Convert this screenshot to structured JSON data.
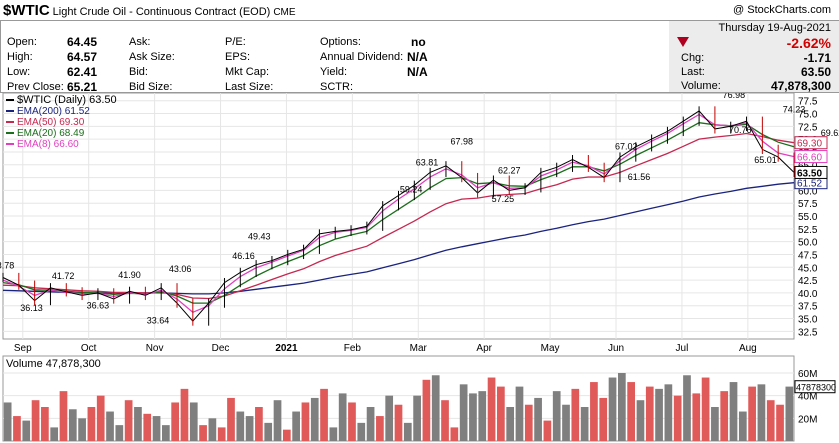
{
  "header": {
    "symbol": "$WTIC",
    "description": "Light Crude Oil - Continuous Contract (EOD)",
    "exchange": "CME",
    "copyright": "@ StockCharts.com"
  },
  "quote": {
    "open_label": "Open:",
    "open": "64.45",
    "high_label": "High:",
    "high": "64.57",
    "low_label": "Low:",
    "low": "62.41",
    "prev_close_label": "Prev Close:",
    "prev_close": "65.21",
    "ask_label": "Ask:",
    "ask_size_label": "Ask Size:",
    "bid_label": "Bid:",
    "bid_size_label": "Bid Size:",
    "pe_label": "P/E:",
    "eps_label": "EPS:",
    "mkt_cap_label": "Mkt Cap:",
    "last_size_label": "Last Size:",
    "options_label": "Options:",
    "options": "no",
    "annual_dividend_label": "Annual Dividend:",
    "annual_dividend": "N/A",
    "yield_label": "Yield:",
    "yield": "N/A",
    "sctr_label": "SCTR:",
    "date": "Thursday  19-Aug-2021",
    "change_pct": "-2.62%",
    "chg_label": "Chg:",
    "chg": "-1.71",
    "last_label": "Last:",
    "last": "63.50",
    "volume_label": "Volume:",
    "volume": "47,878,300"
  },
  "colors": {
    "ema200": "#1a237e",
    "ema50": "#c62850",
    "ema20": "#1b6e1b",
    "ema8": "#e040c0",
    "vol_up": "#7f7f7f",
    "vol_down": "#e05a5a",
    "price": "#000000",
    "negative": "#d00000"
  },
  "chart_data": [
    {
      "type": "line",
      "legend": [
        {
          "key": "price",
          "label": "$WTIC (Daily) 63.50"
        },
        {
          "key": "ema200",
          "label": "EMA(200) 61.52"
        },
        {
          "key": "ema50",
          "label": "EMA(50) 69.30"
        },
        {
          "key": "ema20",
          "label": "EMA(20) 68.49"
        },
        {
          "key": "ema8",
          "label": "EMA(8) 66.60"
        }
      ],
      "x_ticks": [
        "Sep",
        "Oct",
        "Nov",
        "Dec",
        "2021",
        "Feb",
        "Mar",
        "Apr",
        "May",
        "Jun",
        "Jul",
        "Aug"
      ],
      "y_ticks": [
        "77.5",
        "75.0",
        "72.5",
        "70.0",
        "67.5",
        "65.0",
        "62.5",
        "60.0",
        "57.5",
        "55.0",
        "52.5",
        "50.0",
        "47.5",
        "45.0",
        "42.5",
        "40.0",
        "37.5",
        "35.0",
        "32.5"
      ],
      "ylim": [
        31.0,
        79.0
      ],
      "x": [
        0,
        5,
        10,
        15,
        20,
        25,
        30,
        35,
        40,
        45,
        50,
        55,
        60,
        65,
        70,
        75,
        80,
        85,
        90,
        95,
        100,
        105,
        110,
        115,
        120,
        125,
        130,
        135,
        140,
        145,
        150,
        155,
        160,
        165,
        170,
        175,
        180,
        185,
        190,
        195,
        200,
        205,
        210,
        215,
        220,
        225,
        230,
        235,
        240,
        245,
        250
      ],
      "series": [
        {
          "key": "price",
          "values": [
            43.0,
            41.5,
            38.5,
            41.0,
            40.2,
            39.5,
            40.0,
            38.8,
            40.3,
            39.5,
            41.0,
            38.0,
            34.5,
            38.0,
            42.0,
            44.0,
            45.5,
            46.3,
            47.5,
            48.5,
            51.5,
            52.0,
            52.3,
            53.0,
            57.0,
            59.0,
            61.0,
            63.5,
            64.8,
            62.5,
            59.5,
            62.0,
            60.0,
            60.5,
            63.5,
            64.5,
            66.0,
            64.5,
            62.5,
            66.5,
            68.5,
            70.0,
            71.5,
            73.5,
            75.5,
            72.0,
            72.5,
            73.5,
            68.0,
            66.5,
            63.5
          ]
        },
        {
          "key": "ema8",
          "values": [
            42.5,
            41.3,
            39.5,
            40.5,
            40.1,
            39.8,
            39.9,
            39.3,
            40.0,
            39.7,
            40.5,
            38.8,
            36.2,
            37.5,
            40.8,
            43.2,
            44.9,
            46.0,
            47.2,
            48.3,
            50.8,
            51.8,
            52.2,
            52.8,
            56.0,
            58.3,
            60.3,
            62.6,
            64.2,
            63.0,
            60.5,
            61.5,
            60.4,
            60.5,
            62.8,
            64.0,
            65.5,
            64.8,
            63.2,
            65.8,
            68.0,
            69.6,
            71.1,
            73.0,
            74.8,
            72.8,
            72.6,
            73.2,
            69.6,
            67.3,
            66.6
          ]
        },
        {
          "key": "ema20",
          "values": [
            42.0,
            41.6,
            40.6,
            40.5,
            40.3,
            40.1,
            40.0,
            39.7,
            39.9,
            39.8,
            40.2,
            39.4,
            38.0,
            38.0,
            39.5,
            41.5,
            43.3,
            44.8,
            46.1,
            47.3,
            49.2,
            50.5,
            51.3,
            52.0,
            54.3,
            56.3,
            58.3,
            60.5,
            62.3,
            62.5,
            61.3,
            61.5,
            60.9,
            60.8,
            62.1,
            63.2,
            64.6,
            64.6,
            63.8,
            65.1,
            66.8,
            68.3,
            69.8,
            71.5,
            73.2,
            72.8,
            72.6,
            72.9,
            70.9,
            69.4,
            68.5
          ]
        },
        {
          "key": "ema50",
          "values": [
            41.5,
            41.4,
            41.0,
            40.8,
            40.6,
            40.4,
            40.3,
            40.1,
            40.1,
            40.0,
            40.1,
            39.7,
            39.0,
            38.9,
            39.4,
            40.4,
            41.5,
            42.6,
            43.7,
            44.7,
            46.1,
            47.3,
            48.2,
            49.1,
            50.8,
            52.4,
            54.0,
            55.8,
            57.4,
            58.3,
            58.5,
            59.0,
            59.2,
            59.4,
            60.3,
            61.1,
            62.2,
            62.6,
            62.6,
            63.5,
            64.8,
            66.0,
            67.2,
            68.6,
            70.0,
            70.4,
            70.7,
            71.1,
            70.5,
            69.8,
            69.3
          ]
        },
        {
          "key": "ema200",
          "values": [
            40.5,
            40.4,
            40.3,
            40.2,
            40.1,
            40.0,
            40.0,
            40.0,
            40.0,
            40.0,
            40.0,
            39.9,
            39.8,
            39.8,
            40.0,
            40.3,
            40.7,
            41.1,
            41.5,
            41.9,
            42.5,
            43.1,
            43.6,
            44.1,
            44.9,
            45.7,
            46.5,
            47.4,
            48.3,
            49.0,
            49.6,
            50.2,
            50.8,
            51.3,
            52.0,
            52.6,
            53.3,
            53.9,
            54.4,
            55.1,
            55.8,
            56.5,
            57.2,
            57.9,
            58.7,
            59.3,
            59.8,
            60.4,
            60.8,
            61.2,
            61.5
          ]
        }
      ],
      "annotations": [
        {
          "label": "43.78",
          "x": 0,
          "y": 44.4
        },
        {
          "label": "36.13",
          "x": 9,
          "y": 36.1
        },
        {
          "label": "41.72",
          "x": 19,
          "y": 42.3
        },
        {
          "label": "36.63",
          "x": 30,
          "y": 36.6
        },
        {
          "label": "41.90",
          "x": 40,
          "y": 42.5
        },
        {
          "label": "33.64",
          "x": 49,
          "y": 33.6
        },
        {
          "label": "43.06",
          "x": 56,
          "y": 43.7
        },
        {
          "label": "46.16",
          "x": 76,
          "y": 46.2
        },
        {
          "label": "49.43",
          "x": 81,
          "y": 50.0
        },
        {
          "label": "63.81",
          "x": 134,
          "y": 64.5
        },
        {
          "label": "59.24",
          "x": 129,
          "y": 59.2
        },
        {
          "label": "67.98",
          "x": 145,
          "y": 68.6
        },
        {
          "label": "62.27",
          "x": 160,
          "y": 62.9
        },
        {
          "label": "57.25",
          "x": 158,
          "y": 57.3
        },
        {
          "label": "67.02",
          "x": 197,
          "y": 67.6
        },
        {
          "label": "61.56",
          "x": 201,
          "y": 61.6
        },
        {
          "label": "76.98",
          "x": 231,
          "y": 77.6
        },
        {
          "label": "70.76",
          "x": 233,
          "y": 70.8
        },
        {
          "label": "74.23",
          "x": 250,
          "y": 74.8
        },
        {
          "label": "65.01",
          "x": 241,
          "y": 65.0
        },
        {
          "label": "69.62",
          "x": 262,
          "y": 70.2
        },
        {
          "label": "65.15",
          "x": 256,
          "y": 65.2
        }
      ],
      "right_tags": [
        {
          "key": "ema50",
          "label": "69.30"
        },
        {
          "key": "ema8",
          "label": "66.60"
        },
        {
          "key": "ema200",
          "label": "61.52"
        },
        {
          "key": "price",
          "label": "63.50"
        }
      ]
    },
    {
      "type": "bar",
      "legend_label": "Volume 47,878,300",
      "y_ticks": [
        "60M",
        "40M",
        "20M"
      ],
      "ylim": [
        0,
        75
      ],
      "current_tag": "47878300",
      "values": [
        34,
        22,
        18,
        36,
        30,
        12,
        44,
        28,
        20,
        30,
        40,
        26,
        14,
        36,
        30,
        24,
        22,
        14,
        34,
        46,
        34,
        14,
        20,
        12,
        38,
        26,
        22,
        30,
        16,
        36,
        10,
        26,
        34,
        38,
        46,
        12,
        42,
        34,
        16,
        30,
        22,
        40,
        32,
        16,
        40,
        54,
        58,
        36,
        12,
        50,
        42,
        44,
        56,
        48,
        30,
        48,
        32,
        38,
        18,
        44,
        32,
        46,
        30,
        52,
        38,
        56,
        60,
        52,
        36,
        48,
        46,
        50,
        40,
        58,
        42,
        56,
        30,
        44,
        52,
        26,
        48,
        50,
        36,
        32,
        48
      ],
      "up": [
        1,
        0,
        1,
        0,
        0,
        1,
        0,
        1,
        1,
        0,
        0,
        1,
        1,
        0,
        1,
        0,
        1,
        1,
        0,
        0,
        1,
        0,
        1,
        0,
        0,
        1,
        1,
        0,
        1,
        1,
        0,
        1,
        0,
        1,
        0,
        1,
        1,
        0,
        1,
        1,
        0,
        1,
        0,
        1,
        1,
        0,
        1,
        0,
        0,
        1,
        1,
        1,
        0,
        0,
        1,
        1,
        0,
        1,
        0,
        1,
        1,
        0,
        1,
        0,
        0,
        1,
        1,
        0,
        1,
        0,
        1,
        1,
        0,
        1,
        0,
        0,
        1,
        0,
        1,
        1,
        0,
        1,
        0,
        0,
        1
      ]
    }
  ]
}
